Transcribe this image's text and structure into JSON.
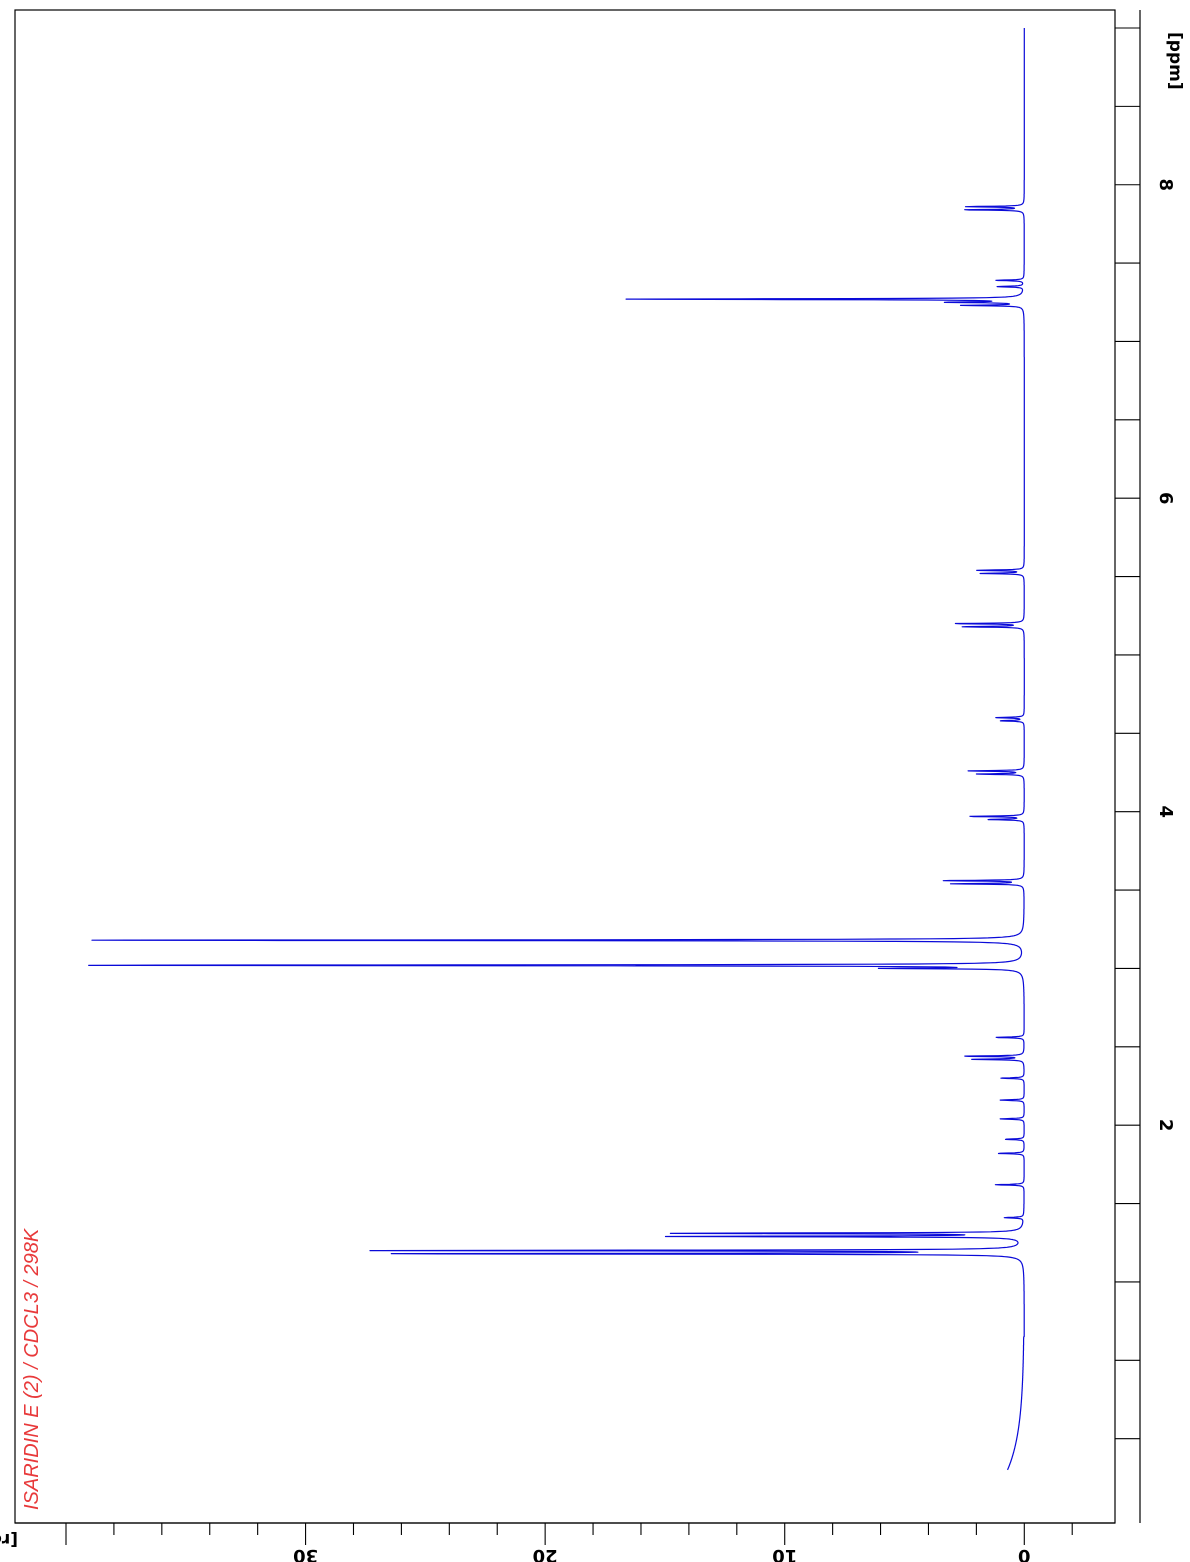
{
  "chart_data": {
    "type": "line",
    "title": "ISARIDIN E (2) / CDCL3 / 298K",
    "xlabel": "[ppm]",
    "ylabel": "[rel]",
    "xlim": [
      9.0,
      -0.2
    ],
    "ylim": [
      -2.2,
      40
    ],
    "x_ticks": [
      8,
      6,
      4,
      2
    ],
    "x_tick_labels": [
      "8",
      "6",
      "4",
      "2"
    ],
    "y_ticks": [
      0,
      10,
      20,
      30
    ],
    "y_tick_labels": [
      "0",
      "10",
      "20",
      "30"
    ],
    "grid": false,
    "series": [
      {
        "peaks": [
          {
            "ppm": 7.86,
            "height": 2.4
          },
          {
            "ppm": 7.84,
            "height": 2.5
          },
          {
            "ppm": 7.39,
            "height": 1.2
          },
          {
            "ppm": 7.35,
            "height": 1.1
          },
          {
            "ppm": 7.27,
            "height": 17.0
          },
          {
            "ppm": 7.25,
            "height": 3.0
          },
          {
            "ppm": 7.23,
            "height": 2.5
          },
          {
            "ppm": 5.54,
            "height": 2.0
          },
          {
            "ppm": 5.52,
            "height": 1.8
          },
          {
            "ppm": 5.2,
            "height": 2.9
          },
          {
            "ppm": 5.18,
            "height": 2.6
          },
          {
            "ppm": 4.6,
            "height": 1.2
          },
          {
            "ppm": 4.58,
            "height": 1.0
          },
          {
            "ppm": 4.26,
            "height": 2.3
          },
          {
            "ppm": 4.24,
            "height": 2.0
          },
          {
            "ppm": 3.97,
            "height": 2.3
          },
          {
            "ppm": 3.95,
            "height": 1.5
          },
          {
            "ppm": 3.56,
            "height": 3.4
          },
          {
            "ppm": 3.54,
            "height": 3.0
          },
          {
            "ppm": 3.18,
            "height": 38.9
          },
          {
            "ppm": 3.02,
            "height": 40.0
          },
          {
            "ppm": 3.0,
            "height": 5.2
          },
          {
            "ppm": 2.56,
            "height": 1.2
          },
          {
            "ppm": 2.44,
            "height": 2.5
          },
          {
            "ppm": 2.42,
            "height": 2.2
          },
          {
            "ppm": 2.3,
            "height": 1.0
          },
          {
            "ppm": 2.16,
            "height": 1.0
          },
          {
            "ppm": 2.04,
            "height": 1.0
          },
          {
            "ppm": 1.91,
            "height": 0.8
          },
          {
            "ppm": 1.82,
            "height": 1.1
          },
          {
            "ppm": 1.62,
            "height": 1.2
          },
          {
            "ppm": 1.41,
            "height": 0.8
          },
          {
            "ppm": 1.31,
            "height": 14.8
          },
          {
            "ppm": 1.29,
            "height": 14.6
          },
          {
            "ppm": 1.2,
            "height": 26.7
          },
          {
            "ppm": 1.18,
            "height": 26.5
          }
        ]
      }
    ]
  }
}
